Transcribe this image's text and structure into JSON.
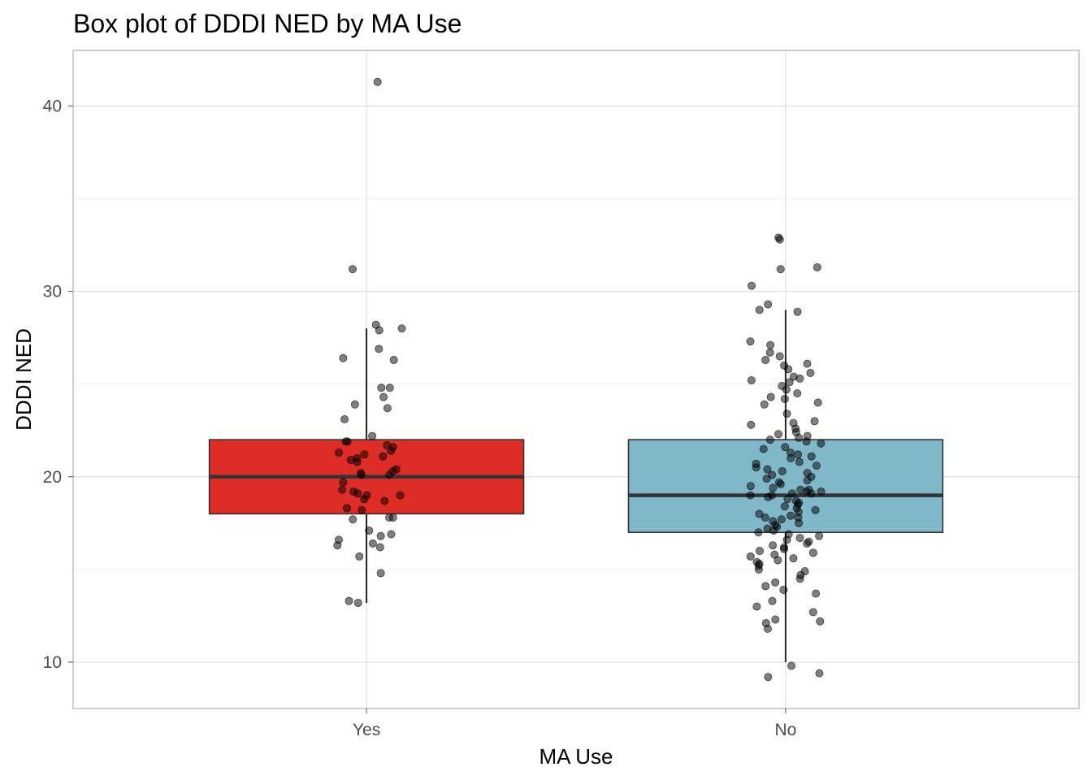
{
  "chart_data": {
    "type": "box",
    "title": "Box plot of DDDI NED by MA Use",
    "xlabel": "MA Use",
    "ylabel": "DDDI NED",
    "categories": [
      "Yes",
      "No"
    ],
    "y_ticks": [
      10,
      20,
      30,
      40
    ],
    "ylim": [
      7.5,
      43
    ],
    "grid": true,
    "legend": "none",
    "boxes": [
      {
        "category": "Yes",
        "color": "#de2d26",
        "whisker_low": 13.2,
        "q1": 18.0,
        "median": 20.0,
        "q3": 22.0,
        "whisker_high": 28.0
      },
      {
        "category": "No",
        "color": "#80b8ca",
        "whisker_low": 10.0,
        "q1": 17.0,
        "median": 19.0,
        "q3": 22.0,
        "whisker_high": 29.0
      }
    ],
    "points": [
      {
        "category": "Yes",
        "values": [
          41.3,
          31.2,
          28.2,
          28.0,
          27.9,
          26.9,
          26.4,
          26.3,
          24.8,
          24.8,
          24.3,
          23.9,
          23.7,
          23.1,
          22.2,
          21.9,
          21.9,
          21.7,
          21.6,
          21.4,
          21.3,
          21.2,
          21.1,
          21.0,
          20.9,
          20.8,
          20.4,
          20.3,
          20.2,
          20.1,
          20.1,
          19.7,
          19.3,
          19.2,
          19.1,
          19.0,
          19.0,
          18.8,
          18.7,
          18.3,
          18.2,
          17.8,
          17.8,
          17.7,
          17.1,
          16.9,
          16.8,
          16.6,
          16.4,
          16.3,
          16.2,
          15.7,
          14.8,
          13.3,
          13.2
        ]
      },
      {
        "category": "No",
        "values": [
          32.9,
          32.8,
          31.3,
          31.2,
          30.3,
          29.3,
          29.0,
          28.9,
          27.3,
          27.1,
          26.7,
          26.5,
          26.3,
          26.1,
          26.0,
          25.8,
          25.6,
          25.4,
          25.3,
          25.2,
          25.1,
          24.9,
          24.7,
          24.5,
          24.3,
          24.2,
          24.0,
          23.9,
          23.4,
          23.0,
          22.9,
          22.8,
          22.6,
          22.4,
          22.3,
          22.2,
          22.1,
          22.0,
          21.9,
          21.8,
          21.6,
          21.5,
          21.3,
          21.2,
          21.1,
          21.0,
          20.8,
          20.7,
          20.6,
          20.5,
          20.4,
          20.3,
          20.2,
          20.1,
          20.0,
          19.9,
          19.8,
          19.7,
          19.6,
          19.5,
          19.4,
          19.3,
          19.3,
          19.2,
          19.2,
          19.1,
          19.1,
          19.0,
          19.0,
          18.9,
          18.8,
          18.7,
          18.6,
          18.5,
          18.4,
          18.3,
          18.2,
          18.1,
          18.0,
          17.9,
          17.8,
          17.8,
          17.7,
          17.6,
          17.5,
          17.4,
          17.3,
          17.2,
          17.1,
          17.0,
          16.9,
          16.8,
          16.7,
          16.6,
          16.5,
          16.4,
          16.3,
          16.2,
          16.1,
          16.0,
          15.9,
          15.8,
          15.7,
          15.6,
          15.5,
          15.4,
          15.3,
          15.2,
          15.0,
          14.9,
          14.7,
          14.5,
          14.3,
          14.1,
          13.9,
          13.7,
          13.3,
          13.0,
          12.7,
          12.3,
          12.2,
          12.1,
          11.8,
          9.8,
          9.4,
          9.2
        ]
      }
    ]
  }
}
